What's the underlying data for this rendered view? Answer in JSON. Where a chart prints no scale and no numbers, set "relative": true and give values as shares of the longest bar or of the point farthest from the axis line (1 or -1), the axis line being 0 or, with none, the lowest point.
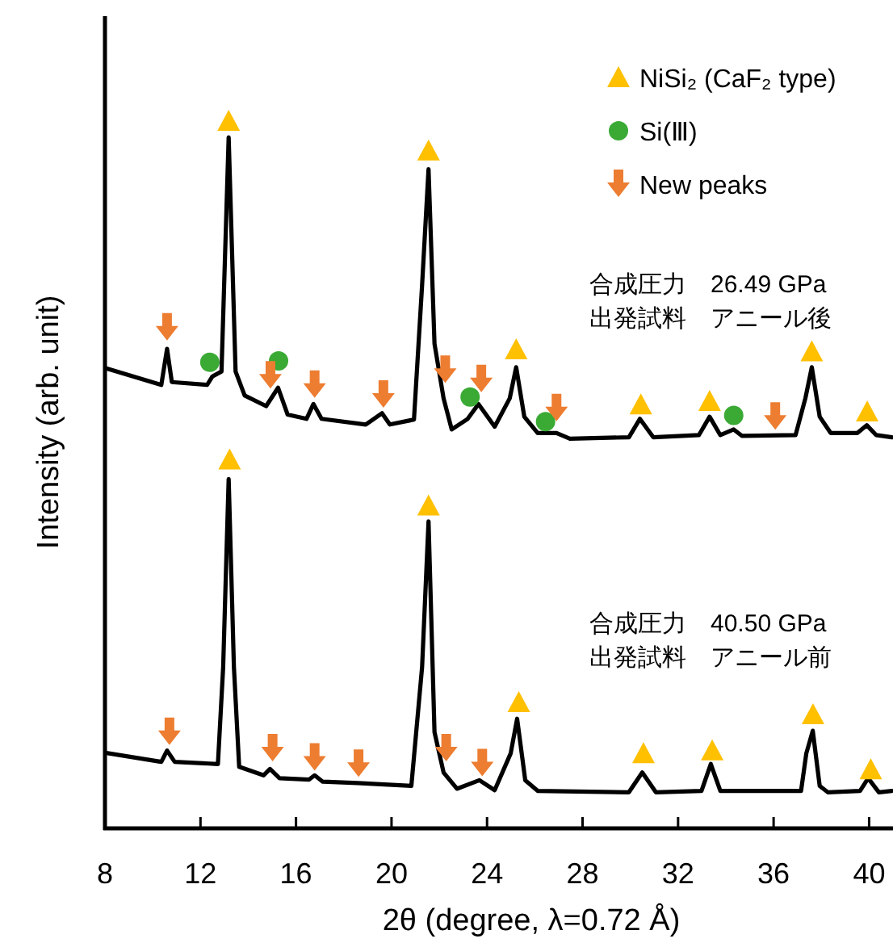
{
  "chart_data": {
    "type": "line",
    "relative": true,
    "xlabel": "2θ (degree, λ=0.72 Å)",
    "ylabel": "Intensity (arb. unit)",
    "xlim": [
      8,
      41
    ],
    "xticks": [
      8,
      12,
      16,
      20,
      24,
      28,
      32,
      36,
      40
    ],
    "grid": false,
    "legend": "top right",
    "tick_labels": "x",
    "annotations": [
      "合成圧力　26.49 GPa\n出発試料　アニール後",
      "合成圧力　40.50 GPa\n出発試料　アニール前"
    ],
    "series": [
      {
        "type": "line",
        "color": "#000000",
        "x": [
          8.0,
          10.36,
          10.6,
          10.8,
          12.28,
          12.5,
          12.88,
          13.18,
          13.47,
          13.85,
          14.75,
          15.25,
          15.65,
          16.44,
          16.73,
          17.07,
          18.92,
          19.6,
          19.93,
          20.94,
          21.28,
          21.55,
          21.8,
          22.18,
          22.52,
          23.19,
          23.64,
          24.32,
          24.95,
          25.22,
          25.56,
          26.12,
          26.91,
          27.47,
          29.94,
          30.4,
          30.96,
          32.87,
          33.32,
          33.77,
          34.33,
          34.67,
          36.92,
          37.33,
          37.6,
          37.93,
          38.39,
          39.51,
          39.9,
          40.3,
          40.95
        ],
        "values": [
          0.651,
          0.627,
          0.678,
          0.631,
          0.627,
          0.639,
          0.646,
          0.977,
          0.646,
          0.612,
          0.597,
          0.623,
          0.585,
          0.579,
          0.6,
          0.579,
          0.571,
          0.587,
          0.571,
          0.578,
          0.768,
          0.932,
          0.685,
          0.608,
          0.564,
          0.579,
          0.6,
          0.568,
          0.608,
          0.652,
          0.582,
          0.559,
          0.559,
          0.551,
          0.553,
          0.579,
          0.553,
          0.556,
          0.582,
          0.556,
          0.564,
          0.555,
          0.556,
          0.608,
          0.652,
          0.582,
          0.559,
          0.559,
          0.57,
          0.556,
          0.553
        ]
      },
      {
        "type": "line",
        "color": "#000000",
        "x": [
          8.0,
          10.36,
          10.6,
          10.92,
          12.73,
          12.95,
          13.18,
          13.4,
          13.62,
          14.64,
          14.91,
          15.31,
          16.55,
          16.78,
          17.12,
          18.58,
          20.83,
          21.28,
          21.55,
          21.8,
          22.18,
          22.74,
          23.68,
          24.32,
          24.99,
          25.26,
          25.6,
          26.12,
          29.94,
          30.5,
          31.07,
          32.98,
          33.37,
          33.77,
          37.15,
          37.37,
          37.64,
          37.93,
          38.27,
          39.62,
          39.96,
          40.41,
          40.95
        ],
        "values": [
          0.107,
          0.094,
          0.11,
          0.094,
          0.091,
          0.228,
          0.494,
          0.228,
          0.087,
          0.075,
          0.084,
          0.071,
          0.069,
          0.075,
          0.066,
          0.064,
          0.06,
          0.228,
          0.434,
          0.136,
          0.079,
          0.056,
          0.068,
          0.054,
          0.106,
          0.155,
          0.068,
          0.053,
          0.051,
          0.079,
          0.051,
          0.053,
          0.091,
          0.053,
          0.053,
          0.106,
          0.138,
          0.06,
          0.051,
          0.053,
          0.071,
          0.051,
          0.053
        ]
      },
      {
        "type": "scatter",
        "name": "NiSi₂ (CaF₂ type)",
        "marker": "triangle",
        "color": "#ffc000",
        "x": [
          13.18,
          21.55,
          25.22,
          30.44,
          33.32,
          37.6,
          39.92,
          13.22,
          21.55,
          25.33,
          30.55,
          33.43,
          37.65,
          40.07
        ],
        "values": [
          1.0,
          0.958,
          0.677,
          0.599,
          0.604,
          0.674,
          0.589,
          0.521,
          0.456,
          0.178,
          0.106,
          0.11,
          0.161,
          0.083
        ]
      },
      {
        "type": "scatter",
        "name": "Si(Ⅲ)",
        "marker": "circle",
        "color": "#3aaa35",
        "x": [
          12.39,
          15.27,
          23.29,
          26.45,
          34.33
        ],
        "values": [
          0.659,
          0.661,
          0.61,
          0.575,
          0.584
        ]
      },
      {
        "type": "scatter",
        "name": "New peaks",
        "color": "#ed7d31",
        "x": [
          10.6,
          14.93,
          16.78,
          19.66,
          22.25,
          23.76,
          26.91,
          36.07,
          10.7,
          15.02,
          16.78,
          18.62,
          22.29,
          23.8
        ],
        "values": [
          0.708,
          0.64,
          0.627,
          0.613,
          0.648,
          0.635,
          0.594,
          0.582,
          0.136,
          0.113,
          0.1,
          0.091,
          0.113,
          0.092
        ]
      }
    ]
  }
}
